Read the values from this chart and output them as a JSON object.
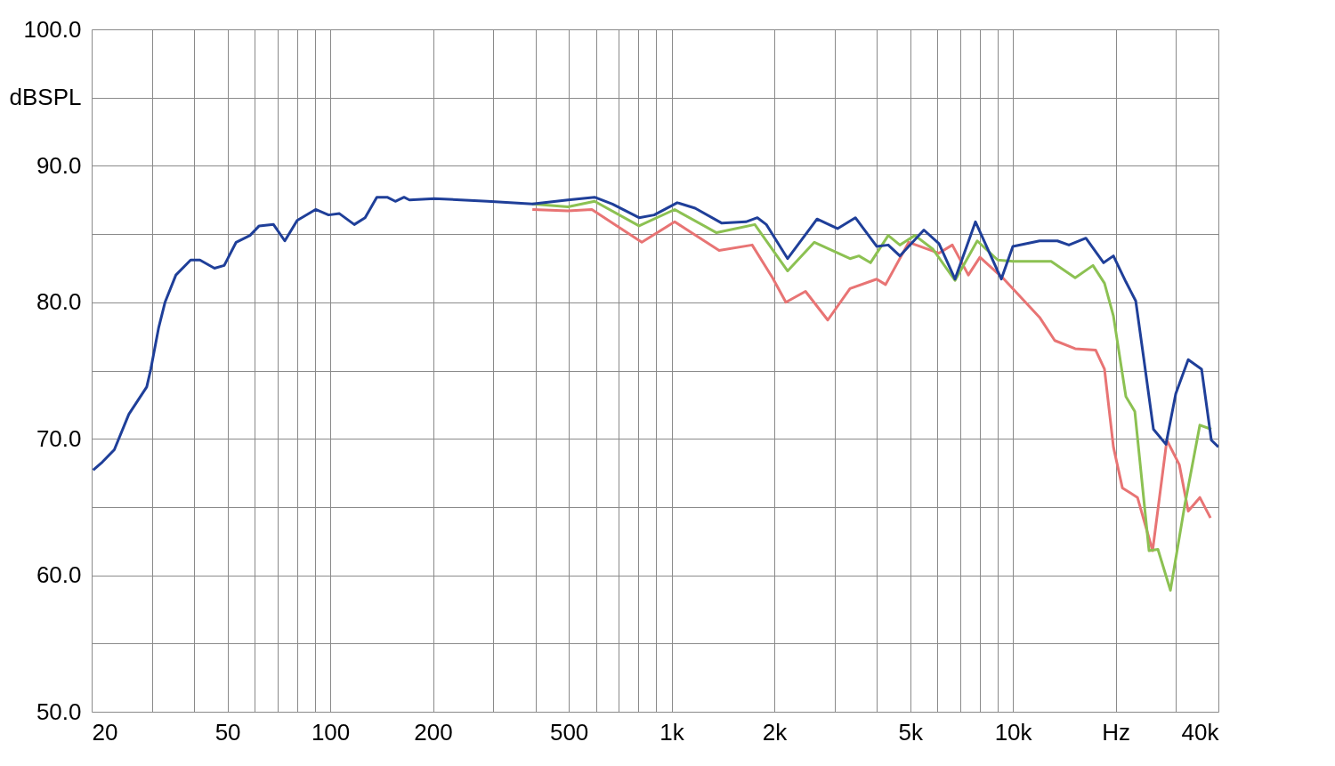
{
  "chart_data": {
    "type": "line",
    "xlim": [
      20,
      40000
    ],
    "ylim": [
      50,
      100
    ],
    "log": "x",
    "grid": true,
    "line_style": "solid",
    "marker": "none",
    "xticks": [
      20,
      {
        "value": 30,
        "label": null
      },
      {
        "value": 40,
        "label": null
      },
      50,
      {
        "value": 60,
        "label": null
      },
      {
        "value": 70,
        "label": null
      },
      {
        "value": 80,
        "label": null
      },
      {
        "value": 90,
        "label": null
      },
      100,
      200,
      {
        "value": 300,
        "label": null
      },
      {
        "value": 400,
        "label": null
      },
      500,
      {
        "value": 600,
        "label": null
      },
      {
        "value": 700,
        "label": null
      },
      {
        "value": 800,
        "label": null
      },
      {
        "value": 900,
        "label": null
      },
      {
        "value": 1000,
        "label": "1k"
      },
      {
        "value": 2000,
        "label": "2k"
      },
      {
        "value": 3000,
        "label": null
      },
      {
        "value": 4000,
        "label": null
      },
      {
        "value": 5000,
        "label": "5k"
      },
      {
        "value": 6000,
        "label": null
      },
      {
        "value": 7000,
        "label": null
      },
      {
        "value": 8000,
        "label": null
      },
      {
        "value": 9000,
        "label": null
      },
      {
        "value": 10000,
        "label": "10k"
      },
      {
        "value": 20000,
        "label": "Hz"
      },
      {
        "value": 30000,
        "label": null
      },
      {
        "value": 40000,
        "label": "40k"
      }
    ],
    "yticks": [
      {
        "value": 50,
        "label": "50.0"
      },
      {
        "value": 55,
        "label": null
      },
      {
        "value": 60,
        "label": "60.0"
      },
      {
        "value": 65,
        "label": null
      },
      {
        "value": 70,
        "label": "70.0"
      },
      {
        "value": 75,
        "label": null
      },
      {
        "value": 80,
        "label": "80.0"
      },
      {
        "value": 85,
        "label": null
      },
      {
        "value": 90,
        "label": "90.0"
      },
      {
        "value": 95,
        "label": "dBSPL"
      },
      {
        "value": 100,
        "label": "100.0"
      }
    ],
    "series": [
      {
        "color": "#e87474",
        "x": [
          391,
          497,
          584,
          818,
          1021,
          1378,
          1722,
          1976,
          2162,
          2468,
          2868,
          3332,
          3990,
          4236,
          4953,
          6074,
          6645,
          7404,
          8005,
          9415,
          11970,
          13260,
          15220,
          17470,
          18550,
          19700,
          20930,
          23170,
          25660,
          28250,
          30730,
          32630,
          35290,
          37910
        ],
        "values": [
          86.8,
          86.7,
          86.8,
          84.4,
          85.9,
          83.8,
          84.2,
          81.8,
          80.0,
          80.8,
          78.7,
          81.0,
          81.7,
          81.3,
          84.4,
          83.6,
          84.2,
          82.0,
          83.3,
          81.7,
          78.9,
          77.2,
          76.6,
          76.5,
          75.1,
          69.4,
          66.4,
          65.7,
          61.8,
          69.9,
          68.1,
          64.7,
          65.7,
          64.2
        ]
      },
      {
        "color": "#8cc152",
        "x": [
          391,
          497,
          595,
          803,
          1021,
          1354,
          1753,
          2188,
          2620,
          3332,
          3539,
          3826,
          4313,
          4665,
          5164,
          5825,
          6766,
          7862,
          9027,
          9996,
          12940,
          15220,
          17160,
          18550,
          19700,
          21430,
          22760,
          25050,
          26600,
          28940,
          31860,
          35290,
          38140
        ],
        "values": [
          87.2,
          87.0,
          87.4,
          85.6,
          86.8,
          85.1,
          85.7,
          82.3,
          84.4,
          83.2,
          83.4,
          82.9,
          84.9,
          84.2,
          84.9,
          83.9,
          81.6,
          84.5,
          83.1,
          83.0,
          83.0,
          81.8,
          82.7,
          81.4,
          79.0,
          73.1,
          72.0,
          61.8,
          61.9,
          58.9,
          65.1,
          71.0,
          70.7
        ]
      },
      {
        "color": "#1f3f99",
        "x": [
          20.2,
          21.5,
          23.3,
          25.7,
          29.0,
          29.8,
          31.4,
          32.8,
          35.3,
          39.0,
          41.5,
          45.8,
          48.9,
          53.0,
          58.2,
          61.9,
          68.2,
          73.6,
          80.0,
          90.6,
          98.9,
          106.4,
          117.6,
          126.5,
          136.9,
          146.8,
          155.1,
          164.5,
          170.6,
          202,
          289,
          391,
          497,
          595,
          671,
          803,
          889,
          1039,
          1172,
          1404,
          1651,
          1784,
          1895,
          2188,
          2668,
          3063,
          3455,
          3990,
          4313,
          4665,
          5485,
          6074,
          6766,
          7768,
          9246,
          9996,
          11970,
          13500,
          14590,
          16360,
          18440,
          19700,
          21430,
          22900,
          24170,
          25810,
          28080,
          30000,
          32630,
          35710,
          38140,
          40000
        ],
        "values": [
          67.7,
          68.3,
          69.2,
          71.8,
          73.8,
          75.1,
          78.1,
          80.0,
          82.0,
          83.1,
          83.1,
          82.5,
          82.7,
          84.4,
          84.9,
          85.6,
          85.7,
          84.5,
          86.0,
          86.8,
          86.4,
          86.5,
          85.7,
          86.2,
          87.7,
          87.7,
          87.4,
          87.7,
          87.5,
          87.6,
          87.4,
          87.2,
          87.5,
          87.7,
          87.2,
          86.2,
          86.4,
          87.3,
          86.9,
          85.8,
          85.9,
          86.2,
          85.7,
          83.2,
          86.1,
          85.4,
          86.2,
          84.1,
          84.2,
          83.4,
          85.3,
          84.3,
          81.7,
          85.9,
          81.7,
          84.1,
          84.5,
          84.5,
          84.2,
          84.7,
          82.9,
          83.4,
          81.5,
          80.1,
          75.9,
          70.7,
          69.6,
          73.3,
          75.8,
          75.1,
          69.9,
          69.4
        ]
      }
    ]
  }
}
